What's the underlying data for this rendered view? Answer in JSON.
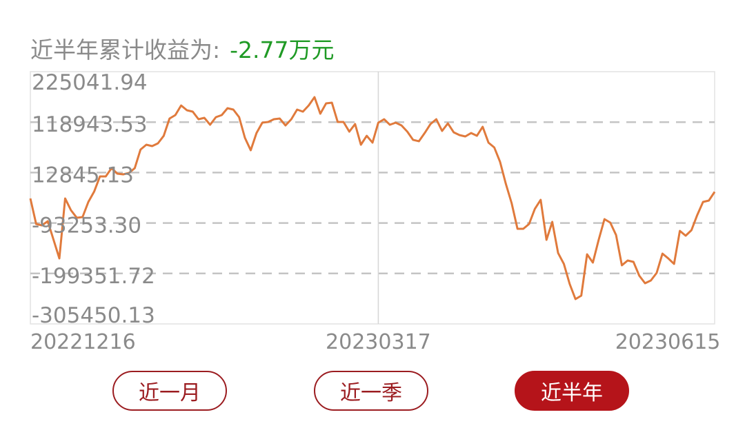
{
  "header": {
    "label": "近半年累计收益为:",
    "value": "-2.77万元",
    "value_color": "#1f9a25"
  },
  "chart_data": {
    "type": "line",
    "title": "",
    "xlabel": "",
    "ylabel": "",
    "ylim": [
      -305450.13,
      225041.94
    ],
    "y_ticks": [
      "225041.94",
      "118943.53",
      "12845.13",
      "-93253.30",
      "-199351.72",
      "-305450.13"
    ],
    "y_tick_values": [
      225041.94,
      118943.53,
      12845.13,
      -93253.3,
      -199351.72,
      -305450.13
    ],
    "x_tick_labels": [
      "20221216",
      "20230317",
      "20230615"
    ],
    "x_tick_positions_index": [
      0,
      60,
      119
    ],
    "grid": "horizontal dashed",
    "line_color": "#e07a3c",
    "series": [
      {
        "values": [
          -41600,
          -95300,
          -98200,
          -89500,
          -128600,
          -167700,
          -41600,
          -66300,
          -82200,
          -80800,
          -48900,
          -27200,
          4700,
          4700,
          22100,
          10500,
          9100,
          12000,
          22100,
          61300,
          71400,
          68500,
          74300,
          90200,
          126500,
          133700,
          154000,
          143900,
          141000,
          125000,
          127900,
          113400,
          129400,
          133700,
          148200,
          145300,
          129400,
          85900,
          59800,
          96000,
          117800,
          119200,
          125000,
          126500,
          112000,
          125000,
          145300,
          141000,
          154000,
          171400,
          136600,
          158400,
          159800,
          119200,
          119200,
          98900,
          114900,
          71400,
          90200,
          75800,
          117800,
          125000,
          113400,
          117800,
          112000,
          98900,
          81600,
          78700,
          96000,
          114900,
          125000,
          100400,
          116300,
          97500,
          91700,
          88800,
          96000,
          90200,
          109100,
          75800,
          65600,
          35200,
          -11200,
          -51800,
          -105400,
          -105400,
          -95300,
          -63400,
          -44500,
          -128600,
          -90900,
          -156200,
          -179300,
          -221400,
          -253300,
          -246000,
          -159000,
          -176400,
          -128600,
          -85100,
          -92400,
          -118500,
          -182200,
          -172100,
          -175000,
          -204000,
          -219900,
          -214100,
          -198200,
          -157600,
          -167700,
          -179300,
          -109800,
          -119900,
          -108300,
          -76400,
          -48900,
          -46000,
          -27700
        ]
      }
    ]
  },
  "buttons": [
    {
      "label": "近一月",
      "active": false
    },
    {
      "label": "近一季",
      "active": false
    },
    {
      "label": "近半年",
      "active": true
    }
  ],
  "colors": {
    "button_border": "#9b1c20",
    "button_active": "#b5141a",
    "grid": "#c4c4c4",
    "text": "#8a8a8a"
  }
}
